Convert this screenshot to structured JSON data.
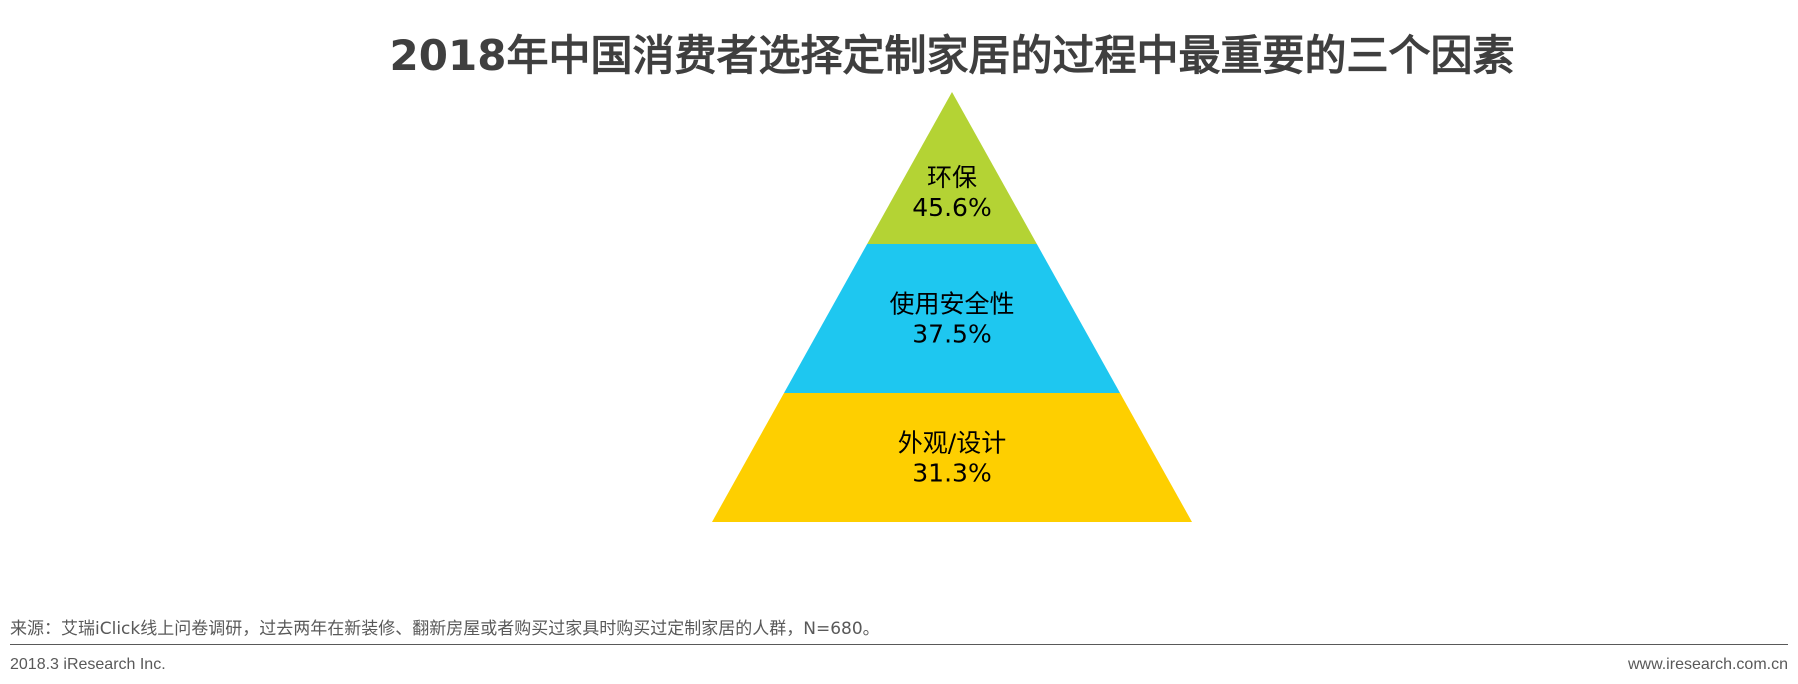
{
  "chart_data": {
    "type": "pyramid",
    "title": "2018年中国消费者选择定制家居的过程中最重要的三个因素",
    "segments": [
      {
        "label": "环保",
        "value": 45.6,
        "display": "45.6%",
        "color": "#b4d334"
      },
      {
        "label": "使用安全性",
        "value": 37.5,
        "display": "37.5%",
        "color": "#1ec7f0"
      },
      {
        "label": "外观/设计",
        "value": 31.3,
        "display": "31.3%",
        "color": "#fecf00"
      }
    ]
  },
  "footer": {
    "source": "来源：艾瑞iClick线上问卷调研，过去两年在新装修、翻新房屋或者购买过家具时购买过定制家居的人群，N=680。",
    "left": "2018.3 iResearch Inc.",
    "right": "www.iresearch.com.cn"
  }
}
